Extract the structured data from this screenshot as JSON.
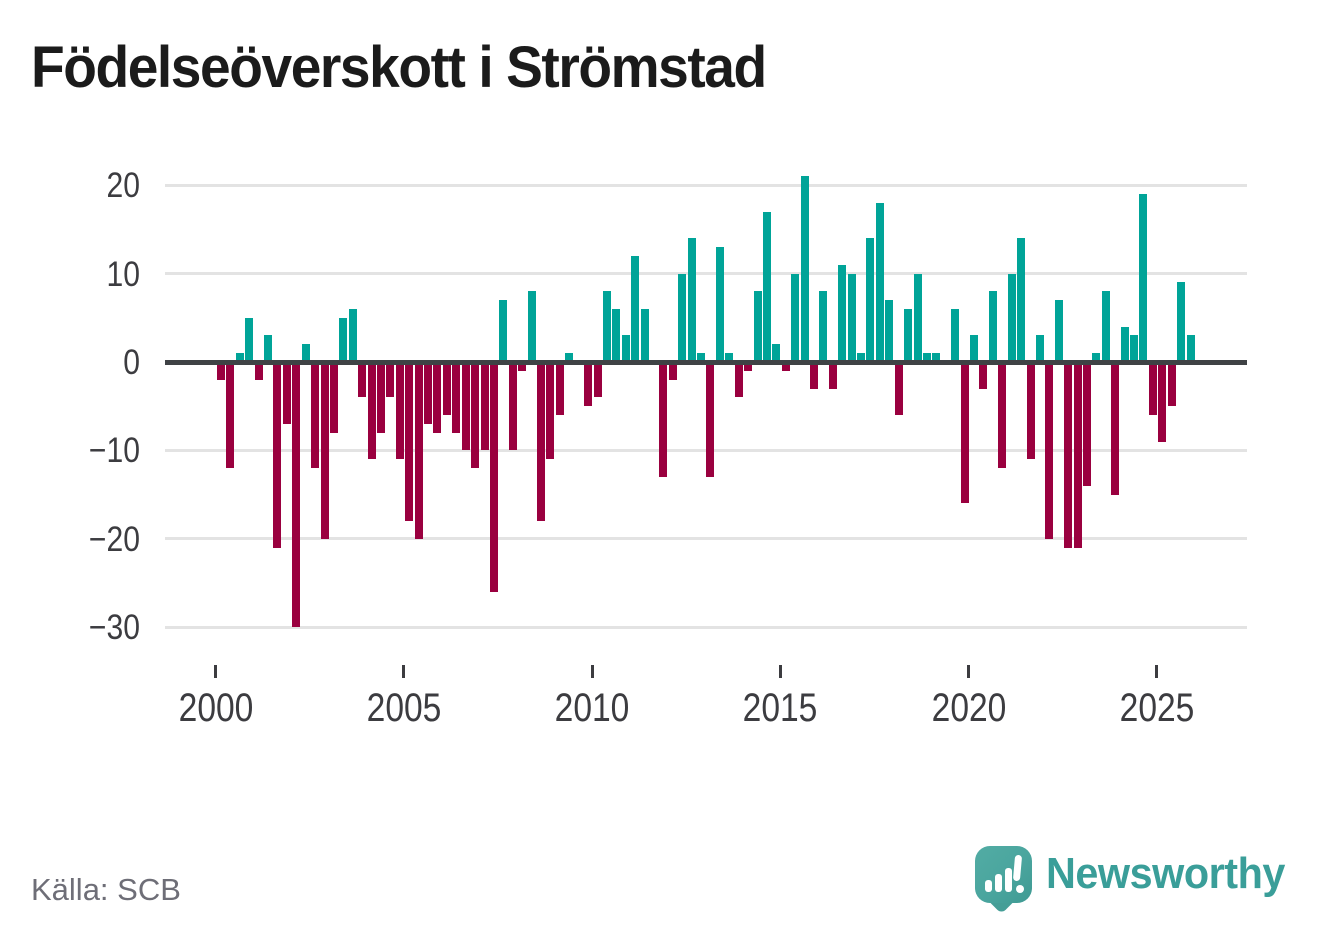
{
  "title": "Födelseöverskott i Strömstad",
  "source": "Källa: SCB",
  "brand": {
    "name": "Newsworthy",
    "icon": "newsworthy-speech-bubble-barchart-icon",
    "wordmark_color": "#3a9e99",
    "icon_color": "#4aa59e"
  },
  "colors": {
    "positive_bar": "#00a498",
    "negative_bar": "#9a003f",
    "axis_text": "#3c3c40",
    "gridline": "#e3e3e3",
    "zero_line": "#3f4245",
    "source_text": "#6e6e77"
  },
  "chart_data": {
    "type": "bar",
    "title": "Födelseöverskott i Strömstad",
    "frequency": "quarterly",
    "x_start": "2000-Q1",
    "x_end": "2025-Q4",
    "start_year": 2000,
    "ylim": [
      -30,
      21
    ],
    "grid": true,
    "legend": false,
    "y_ticks": [
      20,
      10,
      0,
      -10,
      -20,
      -30
    ],
    "y_tick_labels": [
      "20",
      "10",
      "0",
      "−10",
      "−20",
      "−30"
    ],
    "x_tick_years": [
      2000,
      2005,
      2010,
      2015,
      2020,
      2025
    ],
    "x_tick_labels": [
      "2000",
      "2005",
      "2010",
      "2015",
      "2020",
      "2025"
    ],
    "series": [
      {
        "name": "Födelseöverskott",
        "values": [
          -2,
          -12,
          1,
          5,
          -2,
          3,
          -21,
          -7,
          -30,
          2,
          -12,
          -20,
          -8,
          5,
          6,
          -4,
          -11,
          -8,
          -4,
          -11,
          -18,
          -20,
          -7,
          -8,
          -6,
          -8,
          -10,
          -12,
          -10,
          -26,
          7,
          -10,
          -1,
          8,
          -18,
          -11,
          -6,
          1,
          0,
          -5,
          -4,
          8,
          6,
          3,
          12,
          6,
          0,
          -13,
          -2,
          10,
          14,
          1,
          -13,
          13,
          1,
          -4,
          -1,
          8,
          17,
          2,
          -1,
          10,
          21,
          -3,
          8,
          -3,
          11,
          10,
          1,
          14,
          18,
          7,
          -6,
          6,
          10,
          1,
          1,
          0,
          6,
          -16,
          3,
          -3,
          8,
          -12,
          10,
          14,
          -11,
          3,
          -20,
          7,
          -21,
          -21,
          -14,
          1,
          8,
          -15,
          4,
          3,
          19,
          -6,
          -9,
          -5,
          9,
          3
        ]
      }
    ]
  }
}
